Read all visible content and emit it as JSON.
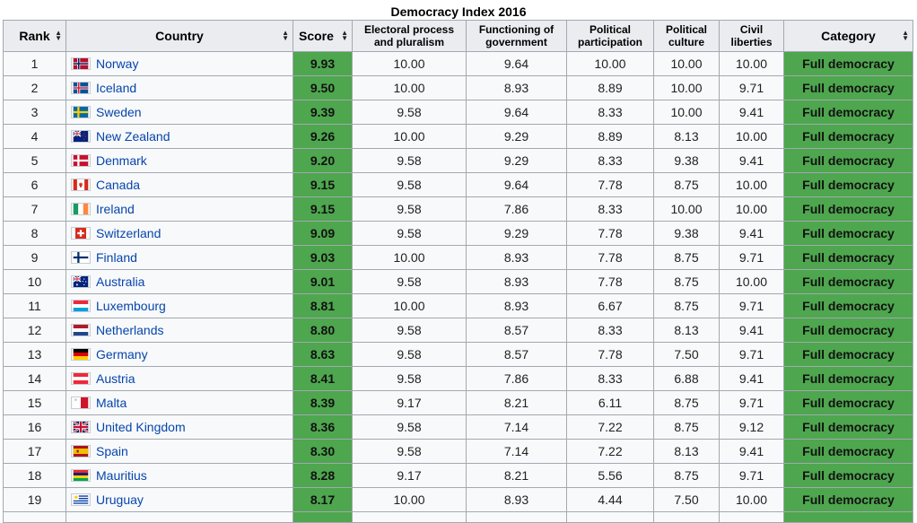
{
  "caption": "Democracy Index 2016",
  "headers": {
    "rank": "Rank",
    "country": "Country",
    "score": "Score",
    "electoral": "Electoral process and pluralism",
    "functioning": "Functioning of government",
    "participation": "Political participation",
    "culture": "Political culture",
    "liberties": "Civil liberties",
    "category": "Category"
  },
  "rows": [
    {
      "rank": "1",
      "country": "Norway",
      "flag": "norway-flag-icon",
      "score": "9.93",
      "electoral": "10.00",
      "functioning": "9.64",
      "participation": "10.00",
      "culture": "10.00",
      "liberties": "10.00",
      "category": "Full democracy"
    },
    {
      "rank": "2",
      "country": "Iceland",
      "flag": "iceland-flag-icon",
      "score": "9.50",
      "electoral": "10.00",
      "functioning": "8.93",
      "participation": "8.89",
      "culture": "10.00",
      "liberties": "9.71",
      "category": "Full democracy"
    },
    {
      "rank": "3",
      "country": "Sweden",
      "flag": "sweden-flag-icon",
      "score": "9.39",
      "electoral": "9.58",
      "functioning": "9.64",
      "participation": "8.33",
      "culture": "10.00",
      "liberties": "9.41",
      "category": "Full democracy"
    },
    {
      "rank": "4",
      "country": "New Zealand",
      "flag": "new-zealand-flag-icon",
      "score": "9.26",
      "electoral": "10.00",
      "functioning": "9.29",
      "participation": "8.89",
      "culture": "8.13",
      "liberties": "10.00",
      "category": "Full democracy"
    },
    {
      "rank": "5",
      "country": "Denmark",
      "flag": "denmark-flag-icon",
      "score": "9.20",
      "electoral": "9.58",
      "functioning": "9.29",
      "participation": "8.33",
      "culture": "9.38",
      "liberties": "9.41",
      "category": "Full democracy"
    },
    {
      "rank": "6",
      "country": "Canada",
      "flag": "canada-flag-icon",
      "score": "9.15",
      "electoral": "9.58",
      "functioning": "9.64",
      "participation": "7.78",
      "culture": "8.75",
      "liberties": "10.00",
      "category": "Full democracy"
    },
    {
      "rank": "7",
      "country": "Ireland",
      "flag": "ireland-flag-icon",
      "score": "9.15",
      "electoral": "9.58",
      "functioning": "7.86",
      "participation": "8.33",
      "culture": "10.00",
      "liberties": "10.00",
      "category": "Full democracy"
    },
    {
      "rank": "8",
      "country": "Switzerland",
      "flag": "switzerland-flag-icon",
      "score": "9.09",
      "electoral": "9.58",
      "functioning": "9.29",
      "participation": "7.78",
      "culture": "9.38",
      "liberties": "9.41",
      "category": "Full democracy"
    },
    {
      "rank": "9",
      "country": "Finland",
      "flag": "finland-flag-icon",
      "score": "9.03",
      "electoral": "10.00",
      "functioning": "8.93",
      "participation": "7.78",
      "culture": "8.75",
      "liberties": "9.71",
      "category": "Full democracy"
    },
    {
      "rank": "10",
      "country": "Australia",
      "flag": "australia-flag-icon",
      "score": "9.01",
      "electoral": "9.58",
      "functioning": "8.93",
      "participation": "7.78",
      "culture": "8.75",
      "liberties": "10.00",
      "category": "Full democracy"
    },
    {
      "rank": "11",
      "country": "Luxembourg",
      "flag": "luxembourg-flag-icon",
      "score": "8.81",
      "electoral": "10.00",
      "functioning": "8.93",
      "participation": "6.67",
      "culture": "8.75",
      "liberties": "9.71",
      "category": "Full democracy"
    },
    {
      "rank": "12",
      "country": "Netherlands",
      "flag": "netherlands-flag-icon",
      "score": "8.80",
      "electoral": "9.58",
      "functioning": "8.57",
      "participation": "8.33",
      "culture": "8.13",
      "liberties": "9.41",
      "category": "Full democracy"
    },
    {
      "rank": "13",
      "country": "Germany",
      "flag": "germany-flag-icon",
      "score": "8.63",
      "electoral": "9.58",
      "functioning": "8.57",
      "participation": "7.78",
      "culture": "7.50",
      "liberties": "9.71",
      "category": "Full democracy"
    },
    {
      "rank": "14",
      "country": "Austria",
      "flag": "austria-flag-icon",
      "score": "8.41",
      "electoral": "9.58",
      "functioning": "7.86",
      "participation": "8.33",
      "culture": "6.88",
      "liberties": "9.41",
      "category": "Full democracy"
    },
    {
      "rank": "15",
      "country": "Malta",
      "flag": "malta-flag-icon",
      "score": "8.39",
      "electoral": "9.17",
      "functioning": "8.21",
      "participation": "6.11",
      "culture": "8.75",
      "liberties": "9.71",
      "category": "Full democracy"
    },
    {
      "rank": "16",
      "country": "United Kingdom",
      "flag": "united-kingdom-flag-icon",
      "score": "8.36",
      "electoral": "9.58",
      "functioning": "7.14",
      "participation": "7.22",
      "culture": "8.75",
      "liberties": "9.12",
      "category": "Full democracy"
    },
    {
      "rank": "17",
      "country": "Spain",
      "flag": "spain-flag-icon",
      "score": "8.30",
      "electoral": "9.58",
      "functioning": "7.14",
      "participation": "7.22",
      "culture": "8.13",
      "liberties": "9.41",
      "category": "Full democracy"
    },
    {
      "rank": "18",
      "country": "Mauritius",
      "flag": "mauritius-flag-icon",
      "score": "8.28",
      "electoral": "9.17",
      "functioning": "8.21",
      "participation": "5.56",
      "culture": "8.75",
      "liberties": "9.71",
      "category": "Full democracy"
    },
    {
      "rank": "19",
      "country": "Uruguay",
      "flag": "uruguay-flag-icon",
      "score": "8.17",
      "electoral": "10.00",
      "functioning": "8.93",
      "participation": "4.44",
      "culture": "7.50",
      "liberties": "10.00",
      "category": "Full democracy"
    }
  ],
  "colors": {
    "score_bg": "#4ea64e",
    "header_bg": "#eaecf0",
    "link": "#0645ad"
  }
}
